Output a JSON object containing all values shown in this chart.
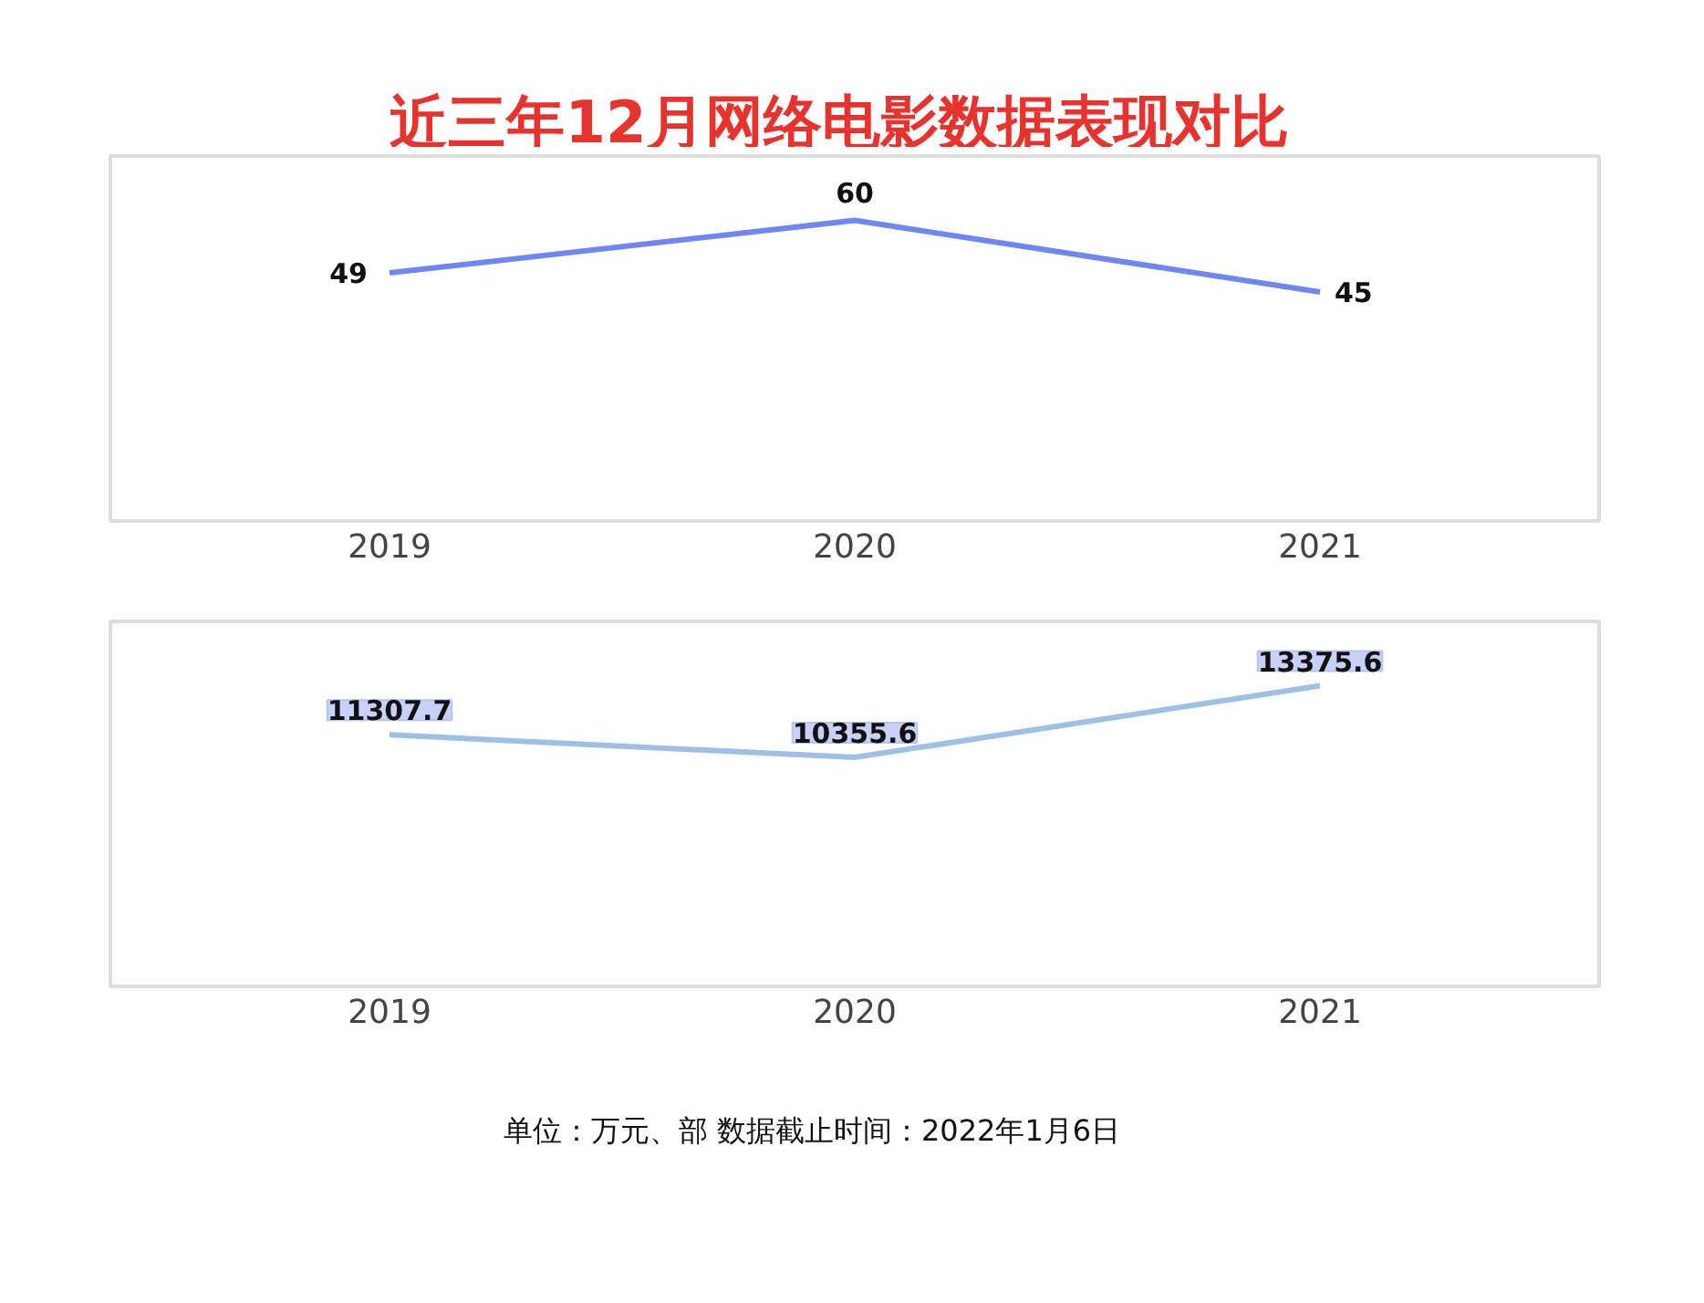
{
  "chart_data": [
    {
      "type": "line",
      "title": "近三年12月网络电影数据表现对比",
      "categories": [
        "2019",
        "2020",
        "2021"
      ],
      "series": [
        {
          "color": "#6f86f5",
          "values": [
            49,
            60,
            45
          ]
        }
      ],
      "data_labels": true,
      "grid": false,
      "marker": "none"
    },
    {
      "type": "line",
      "categories": [
        "2019",
        "2020",
        "2021"
      ],
      "series": [
        {
          "color": "#9fc0e6",
          "values": [
            11307.7,
            10355.6,
            13375.6
          ]
        }
      ],
      "data_labels": true,
      "grid": false,
      "marker": "none",
      "annotations": [
        "单位：万元、部   数据截止时间：2022年1月6日"
      ]
    }
  ]
}
